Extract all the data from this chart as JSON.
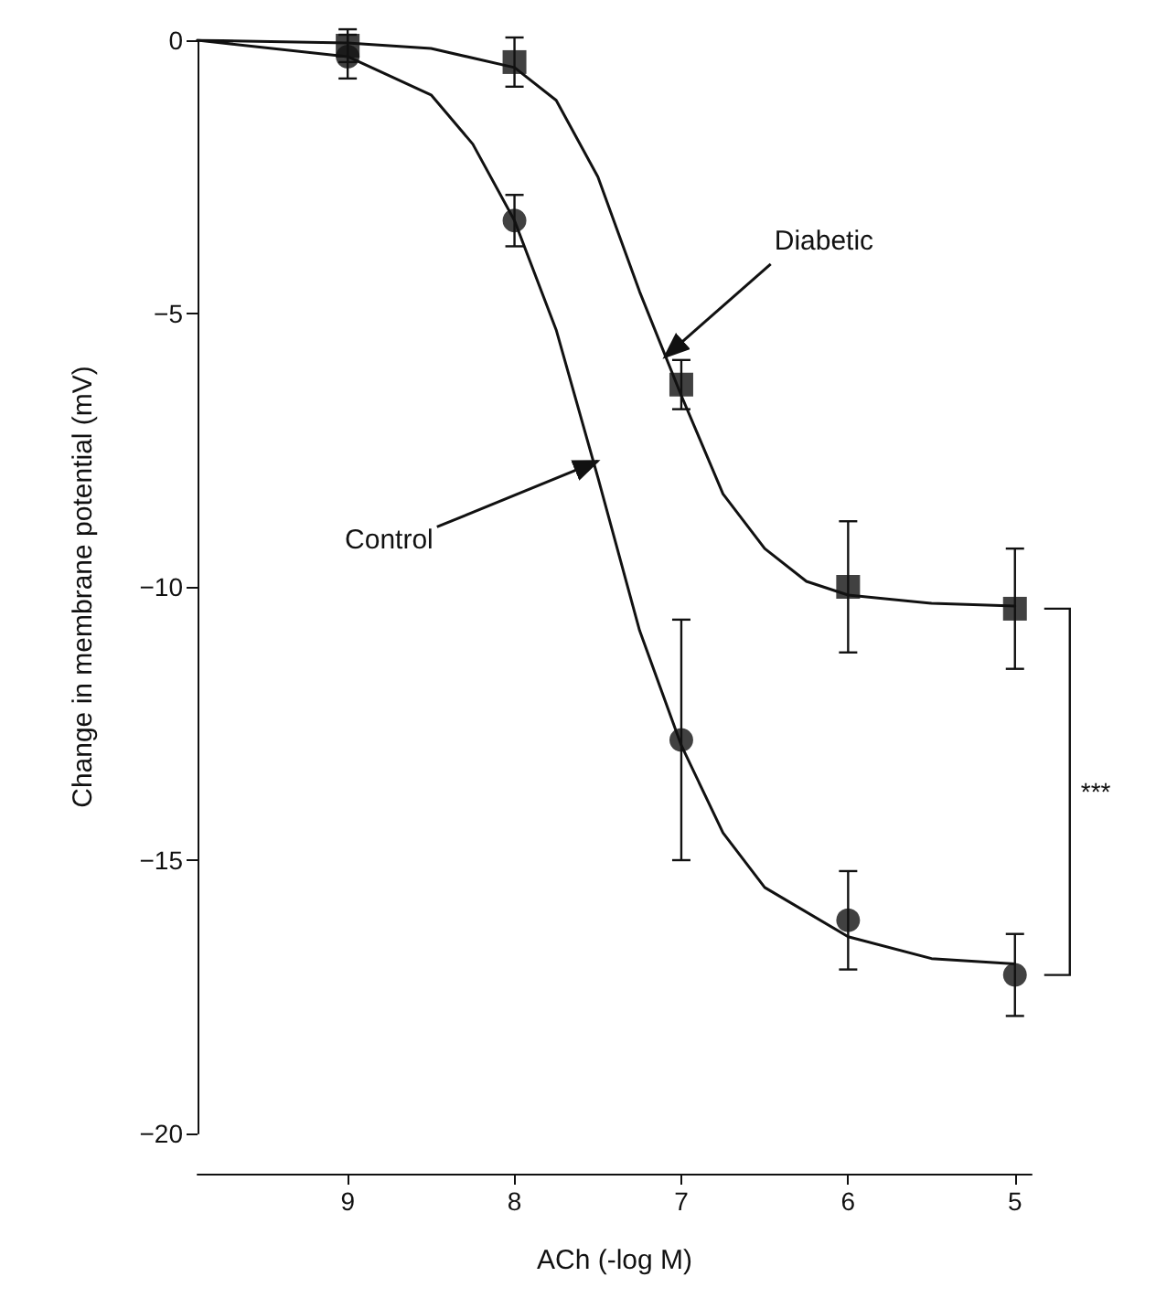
{
  "chart_data": {
    "type": "scatter",
    "xlabel": "ACh (-log M)",
    "ylabel": "Change in membrane potential (mV)",
    "xlim": [
      9.9,
      4.9
    ],
    "xticks": [
      9,
      8,
      7,
      6,
      5
    ],
    "ylim": [
      -20,
      0
    ],
    "yticks": [
      -20,
      -15,
      -10,
      -5,
      0
    ],
    "grid": false,
    "series": [
      {
        "marker": "square",
        "color": "#111111",
        "x": [
          9,
          8,
          7,
          6,
          5
        ],
        "values": [
          -0.1,
          -0.4,
          -6.3,
          -10.0,
          -10.4
        ],
        "errors": [
          0.3,
          0.45,
          0.45,
          1.2,
          1.1
        ]
      },
      {
        "marker": "circle",
        "color": "#111111",
        "x": [
          9,
          8,
          7,
          6,
          5
        ],
        "values": [
          -0.3,
          -3.3,
          -12.8,
          -16.1,
          -17.1
        ],
        "errors": [
          0.4,
          0.47,
          2.2,
          0.9,
          0.75
        ]
      },
      {
        "type": "line",
        "marker": "none",
        "line_style": "solid",
        "color": "#111111",
        "x": [
          9.9,
          9,
          8.5,
          8,
          7.75,
          7.5,
          7.25,
          7,
          6.75,
          6.5,
          6.25,
          6,
          5.5,
          5
        ],
        "values": [
          0,
          -0.05,
          -0.15,
          -0.5,
          -1.1,
          -2.5,
          -4.6,
          -6.5,
          -8.3,
          -9.3,
          -9.9,
          -10.15,
          -10.3,
          -10.35
        ]
      },
      {
        "type": "line",
        "marker": "none",
        "line_style": "solid",
        "color": "#111111",
        "x": [
          9.9,
          9,
          8.5,
          8.25,
          8,
          7.75,
          7.5,
          7.25,
          7,
          6.75,
          6.5,
          6,
          5.5,
          5
        ],
        "values": [
          0,
          -0.3,
          -1.0,
          -1.9,
          -3.3,
          -5.3,
          -8.0,
          -10.8,
          -12.9,
          -14.5,
          -15.5,
          -16.4,
          -16.8,
          -16.9
        ]
      }
    ],
    "annotations": [
      {
        "text": "Diabetic",
        "x": 7.1,
        "y": -5.8
      },
      {
        "text": "Control",
        "x": 7.5,
        "y": -7.7
      },
      "***"
    ]
  }
}
